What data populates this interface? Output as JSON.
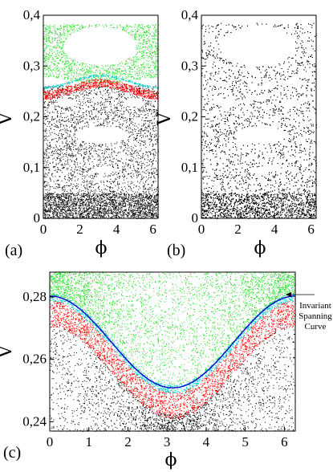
{
  "chart_data": [
    {
      "id": "a",
      "type": "scatter",
      "panel_label": "(a)",
      "xlabel": "ϕ",
      "ylabel": "V",
      "xlim": [
        0,
        6.28
      ],
      "ylim": [
        0,
        0.4
      ],
      "xticks": [
        "0",
        "2",
        "4",
        "6"
      ],
      "yticks": [
        "0",
        "0,1",
        "0,2",
        "0,3",
        "0,4"
      ],
      "grid": false,
      "series": [
        {
          "color": "#22dd22",
          "region": "upper chaotic band",
          "y_range": [
            0.28,
            0.38
          ]
        },
        {
          "color": "#ff0000",
          "region": "resonance band",
          "y_range": [
            0.245,
            0.28
          ]
        },
        {
          "color": "#00cccc",
          "region": "invariant curve band",
          "y_range": [
            0.265,
            0.285
          ]
        },
        {
          "color": "#000000",
          "region": "lower chaotic sea",
          "y_range": [
            0.0,
            0.26
          ]
        }
      ],
      "islands": [
        {
          "phi": 3.1,
          "v": 0.34,
          "rphi": 2.0,
          "rv": 0.038
        },
        {
          "phi": 3.2,
          "v": 0.165,
          "rphi": 1.45,
          "rv": 0.017
        },
        {
          "phi": 3.3,
          "v": 0.096,
          "rphi": 0.7,
          "rv": 0.006
        },
        {
          "phi": 3.2,
          "v": 0.078,
          "rphi": 0.4,
          "rv": 0.003
        },
        {
          "phi": 1.3,
          "v": 0.228,
          "rphi": 0.55,
          "rv": 0.008
        },
        {
          "phi": 4.9,
          "v": 0.228,
          "rphi": 0.55,
          "rv": 0.008
        }
      ]
    },
    {
      "id": "b",
      "type": "scatter",
      "panel_label": "(b)",
      "xlabel": "ϕ",
      "ylabel": "V",
      "xlim": [
        0,
        6.28
      ],
      "ylim": [
        0,
        0.4
      ],
      "xticks": [
        "0",
        "2",
        "4",
        "6"
      ],
      "yticks": [
        "0",
        "0,1",
        "0,2",
        "0,3",
        "0,4"
      ],
      "grid": false,
      "series": [
        {
          "color": "#000000",
          "region": "full chaotic sea",
          "y_range": [
            0.0,
            0.385
          ]
        }
      ],
      "islands": [
        {
          "phi": 3.1,
          "v": 0.34,
          "rphi": 2.0,
          "rv": 0.04
        },
        {
          "phi": 3.2,
          "v": 0.165,
          "rphi": 1.45,
          "rv": 0.017
        },
        {
          "phi": 3.3,
          "v": 0.096,
          "rphi": 0.7,
          "rv": 0.006
        },
        {
          "phi": 1.1,
          "v": 0.265,
          "rphi": 0.6,
          "rv": 0.005
        },
        {
          "phi": 3.1,
          "v": 0.258,
          "rphi": 0.8,
          "rv": 0.005
        },
        {
          "phi": 5.0,
          "v": 0.265,
          "rphi": 0.6,
          "rv": 0.005
        },
        {
          "phi": 1.3,
          "v": 0.228,
          "rphi": 0.55,
          "rv": 0.008
        },
        {
          "phi": 4.9,
          "v": 0.228,
          "rphi": 0.55,
          "rv": 0.008
        }
      ]
    },
    {
      "id": "c",
      "type": "scatter",
      "panel_label": "(c)",
      "xlabel": "ϕ",
      "ylabel": "V",
      "xlim": [
        0,
        6.28
      ],
      "ylim": [
        0.237,
        0.288
      ],
      "xticks": [
        "0",
        "1",
        "2",
        "3",
        "4",
        "5",
        "6"
      ],
      "yticks": [
        "0,24",
        "0,26",
        "0,28"
      ],
      "grid": false,
      "annotation": "Invariant Spanning Curve",
      "annotation_lines": [
        "Invariant",
        "Spanning",
        "Curve"
      ],
      "series": [
        {
          "color": "#22dd22",
          "region": "above spanning curve"
        },
        {
          "color": "#0000cc",
          "region": "invariant spanning curve"
        },
        {
          "color": "#00cccc",
          "region": "quasi-periodic band"
        },
        {
          "color": "#ff0000",
          "region": "resonance chain"
        },
        {
          "color": "#000000",
          "region": "chaotic sea"
        }
      ],
      "curve_model": {
        "center": 0.2645,
        "amplitude": 0.0155
      }
    }
  ]
}
